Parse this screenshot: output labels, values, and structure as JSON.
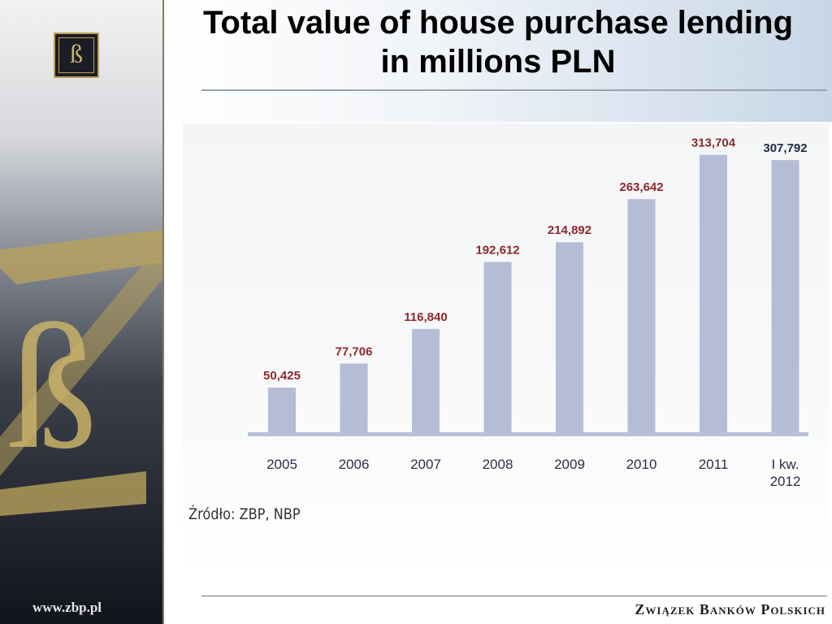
{
  "slide": {
    "title_line1": "Total value of house purchase lending",
    "title_line2": "in millions PLN",
    "url": "www.zbp.pl",
    "brand": "Związek Banków Polskich",
    "logo_glyph": "ß"
  },
  "chart_data": {
    "type": "bar",
    "title": "Total value of house purchase lending in millions PLN",
    "categories": [
      "2005",
      "2006",
      "2007",
      "2008",
      "2009",
      "2010",
      "2011",
      "I kw.\n2012"
    ],
    "values": [
      50425,
      77706,
      116840,
      192612,
      214892,
      263642,
      313704,
      307792
    ],
    "value_labels": [
      "50,425",
      "77,706",
      "116,840",
      "192,612",
      "214,892",
      "263,642",
      "313,704",
      "307,792"
    ],
    "ylim": [
      0,
      340000
    ],
    "grid": false,
    "source": "Źródło: ZBP, NBP",
    "colors": {
      "bar": "#b5bdd6",
      "label_default": "#8b2a2a",
      "label_last": "#1f2a44",
      "axis": "#b9c1d8"
    }
  }
}
